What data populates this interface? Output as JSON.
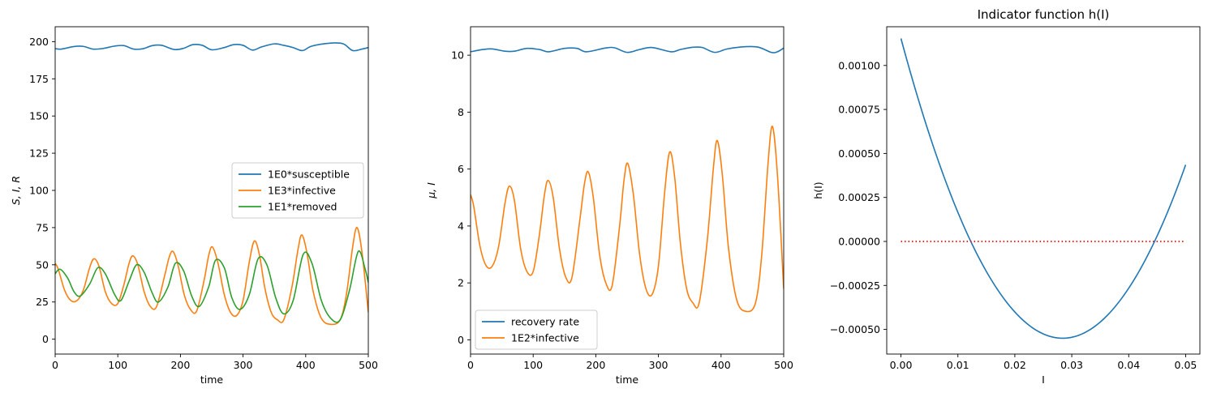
{
  "chart_data": [
    {
      "type": "line",
      "title": "",
      "xlabel": "time",
      "ylabel": "S, I, R",
      "xlim": [
        0,
        500
      ],
      "ylim": [
        -10,
        210
      ],
      "xticks": [
        0,
        100,
        200,
        300,
        400,
        500
      ],
      "yticks": [
        0,
        25,
        50,
        75,
        100,
        125,
        150,
        175,
        200
      ],
      "grid": false,
      "legend": "center-right",
      "series": [
        {
          "name": "1E0*susceptible",
          "color": "#1f77b4",
          "x": [
            0,
            10,
            30,
            45,
            60,
            75,
            95,
            110,
            125,
            140,
            155,
            170,
            190,
            205,
            220,
            235,
            250,
            270,
            285,
            300,
            315,
            330,
            350,
            365,
            380,
            395,
            410,
            440,
            460,
            475,
            490,
            500
          ],
          "y": [
            195.3,
            195,
            196.7,
            196.8,
            195,
            195.3,
            197,
            197.3,
            195,
            195.2,
            197.3,
            197.5,
            194.7,
            195.5,
            198,
            197.5,
            194.5,
            196,
            198,
            197.5,
            194.3,
            196.5,
            198.5,
            197.5,
            196,
            194,
            197,
            199,
            198.5,
            194,
            195,
            196
          ]
        },
        {
          "name": "1E3*infective",
          "color": "#ff7f0e",
          "x": [
            0,
            5,
            15,
            25,
            35,
            45,
            55,
            62,
            70,
            80,
            90,
            100,
            110,
            118,
            124,
            132,
            142,
            152,
            162,
            175,
            182,
            188,
            196,
            206,
            216,
            226,
            238,
            245,
            251,
            260,
            270,
            280,
            290,
            300,
            310,
            318,
            326,
            335,
            345,
            355,
            365,
            378,
            388,
            394,
            402,
            412,
            425,
            440,
            455,
            465,
            475,
            482,
            490,
            500
          ],
          "y": [
            51,
            47,
            33,
            26,
            26,
            33,
            48,
            54,
            49,
            32,
            24,
            24,
            37,
            51,
            56,
            50,
            32,
            22,
            22,
            43,
            55,
            59,
            50,
            30,
            20,
            19,
            40,
            56,
            62,
            51,
            30,
            18,
            16,
            26,
            52,
            66,
            57,
            34,
            18,
            13,
            13,
            35,
            61,
            70,
            58,
            32,
            14,
            10,
            13,
            30,
            62,
            75,
            58,
            18
          ]
        },
        {
          "name": "1E1*removed",
          "color": "#2ca02c",
          "x": [
            0,
            8,
            20,
            30,
            40,
            55,
            68,
            80,
            95,
            105,
            118,
            130,
            142,
            155,
            165,
            180,
            192,
            205,
            218,
            230,
            245,
            256,
            270,
            282,
            295,
            310,
            324,
            338,
            352,
            365,
            380,
            396,
            410,
            425,
            440,
            455,
            470,
            484,
            495,
            500
          ],
          "y": [
            44,
            47,
            41,
            32,
            29,
            37,
            48,
            44,
            30,
            26,
            39,
            50,
            45,
            31,
            25,
            35,
            51,
            46,
            29,
            22,
            35,
            53,
            48,
            28,
            20,
            30,
            54,
            50,
            28,
            17,
            26,
            57,
            51,
            26,
            14,
            13,
            33,
            59,
            47,
            38
          ]
        }
      ]
    },
    {
      "type": "line",
      "title": "",
      "xlabel": "time",
      "ylabel": "μ, I",
      "xlim": [
        0,
        500
      ],
      "ylim": [
        -0.5,
        11
      ],
      "xticks": [
        0,
        100,
        200,
        300,
        400,
        500
      ],
      "yticks": [
        0,
        2,
        4,
        6,
        8,
        10
      ],
      "grid": false,
      "legend": "lower-left",
      "series": [
        {
          "name": "recovery rate",
          "color": "#1f77b4",
          "x": [
            0,
            20,
            35,
            55,
            70,
            90,
            110,
            125,
            150,
            170,
            185,
            215,
            230,
            250,
            270,
            290,
            320,
            335,
            355,
            370,
            390,
            410,
            440,
            460,
            480,
            490,
            500
          ],
          "y": [
            10.12,
            10.2,
            10.22,
            10.14,
            10.14,
            10.24,
            10.2,
            10.12,
            10.24,
            10.24,
            10.12,
            10.25,
            10.26,
            10.1,
            10.2,
            10.27,
            10.12,
            10.2,
            10.28,
            10.27,
            10.1,
            10.22,
            10.3,
            10.28,
            10.1,
            10.12,
            10.25
          ]
        },
        {
          "name": "1E2*infective",
          "color": "#ff7f0e",
          "x": [
            0,
            5,
            15,
            25,
            35,
            45,
            55,
            62,
            70,
            80,
            90,
            100,
            110,
            118,
            124,
            132,
            142,
            152,
            162,
            175,
            182,
            188,
            196,
            206,
            216,
            226,
            238,
            245,
            251,
            260,
            270,
            280,
            290,
            300,
            310,
            318,
            326,
            335,
            345,
            355,
            365,
            378,
            388,
            394,
            402,
            412,
            425,
            440,
            455,
            465,
            475,
            482,
            490,
            500
          ],
          "y": [
            5.1,
            4.7,
            3.3,
            2.6,
            2.6,
            3.3,
            4.8,
            5.4,
            4.9,
            3.2,
            2.4,
            2.4,
            3.7,
            5.1,
            5.6,
            5.0,
            3.2,
            2.2,
            2.2,
            4.3,
            5.5,
            5.9,
            5.0,
            3.0,
            2.0,
            1.9,
            4.0,
            5.6,
            6.2,
            5.1,
            3.0,
            1.8,
            1.6,
            2.6,
            5.2,
            6.6,
            5.7,
            3.4,
            1.8,
            1.3,
            1.3,
            3.5,
            6.1,
            7.0,
            5.8,
            3.2,
            1.4,
            1.0,
            1.3,
            3.0,
            6.2,
            7.5,
            5.8,
            1.8
          ]
        }
      ]
    },
    {
      "type": "line",
      "title": "Indicator function h(I)",
      "xlabel": "I",
      "ylabel": "h(I)",
      "xlim": [
        -0.0025,
        0.0525
      ],
      "ylim": [
        -0.00064,
        0.00122
      ],
      "xticks": [
        0,
        0.01,
        0.02,
        0.03,
        0.04,
        0.05
      ],
      "xtick_labels": [
        "0.00",
        "0.01",
        "0.02",
        "0.03",
        "0.04",
        "0.05"
      ],
      "yticks": [
        -0.0005,
        -0.00025,
        0,
        0.00025,
        0.0005,
        0.00075,
        0.001
      ],
      "ytick_labels": [
        "−0.00050",
        "−0.00025",
        "0.00000",
        "0.00025",
        "0.00050",
        "0.00075",
        "0.00100"
      ],
      "grid": false,
      "series": [
        {
          "color": "#1f77b4",
          "style": "solid",
          "quadratic": {
            "a": 2.1118,
            "vertex_x": 0.0284,
            "vertex_y": -0.00055
          },
          "x_range": [
            0,
            0.05
          ]
        },
        {
          "color": "#ff0000",
          "style": "dotted",
          "x": [
            0,
            0.05
          ],
          "y": [
            0,
            0
          ]
        }
      ]
    }
  ]
}
